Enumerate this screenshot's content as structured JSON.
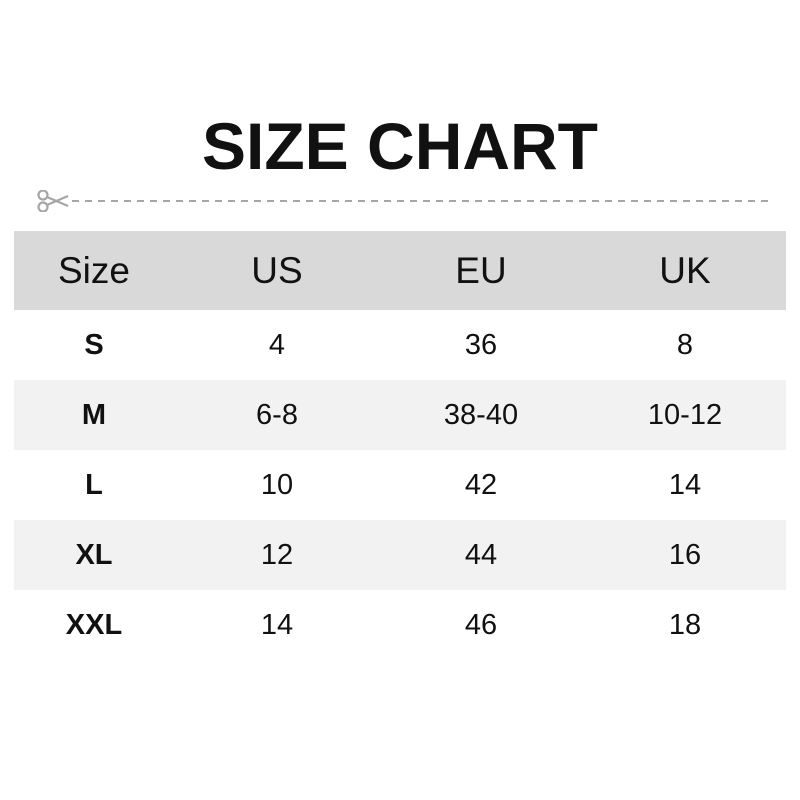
{
  "title": "SIZE CHART",
  "icons": {
    "cut": "scissors-icon"
  },
  "colors": {
    "header_bg": "#d9d9d9",
    "alt_row_bg": "#f2f2f2",
    "divider": "#a6a6a6"
  },
  "table": {
    "headers": [
      "Size",
      "US",
      "EU",
      "UK"
    ],
    "rows": [
      [
        "S",
        "4",
        "36",
        "8"
      ],
      [
        "M",
        "6-8",
        "38-40",
        "10-12"
      ],
      [
        "L",
        "10",
        "42",
        "14"
      ],
      [
        "XL",
        "12",
        "44",
        "16"
      ],
      [
        "XXL",
        "14",
        "46",
        "18"
      ]
    ]
  }
}
